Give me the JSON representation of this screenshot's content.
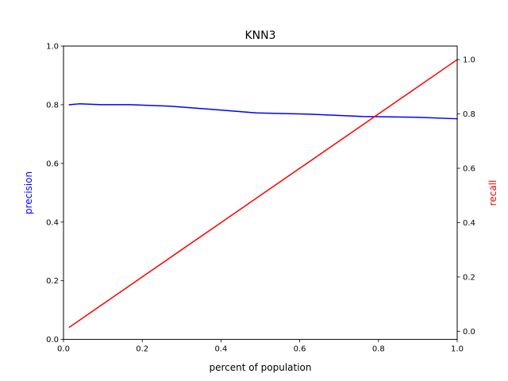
{
  "chart_data": {
    "type": "line",
    "title": "KNN3",
    "xlabel": "percent of population",
    "xlim": [
      0.0,
      1.0
    ],
    "x_ticks": [
      "0.0",
      "0.2",
      "0.4",
      "0.6",
      "0.8",
      "1.0"
    ],
    "left_axis": {
      "label": "precision",
      "color": "#0000ff",
      "ylim": [
        0.0,
        1.0
      ],
      "ticks": [
        "0.0",
        "0.2",
        "0.4",
        "0.6",
        "0.8",
        "1.0"
      ]
    },
    "right_axis": {
      "label": "recall",
      "color": "#ff0000",
      "ylim": [
        -0.03,
        1.05
      ],
      "ticks": [
        "0.0",
        "0.2",
        "0.4",
        "0.6",
        "0.8",
        "1.0"
      ]
    },
    "series": [
      {
        "axis": "left",
        "color": "#0000ff",
        "x": [
          0.015,
          0.04,
          0.1,
          0.17,
          0.27,
          0.37,
          0.49,
          0.62,
          0.76,
          0.9,
          1.0
        ],
        "y": [
          0.8,
          0.803,
          0.8,
          0.8,
          0.795,
          0.785,
          0.772,
          0.768,
          0.76,
          0.757,
          0.752
        ]
      },
      {
        "axis": "right",
        "color": "#ff0000",
        "x": [
          0.015,
          1.0
        ],
        "y": [
          0.015,
          1.0
        ]
      }
    ],
    "grid": false,
    "legend": "none"
  }
}
